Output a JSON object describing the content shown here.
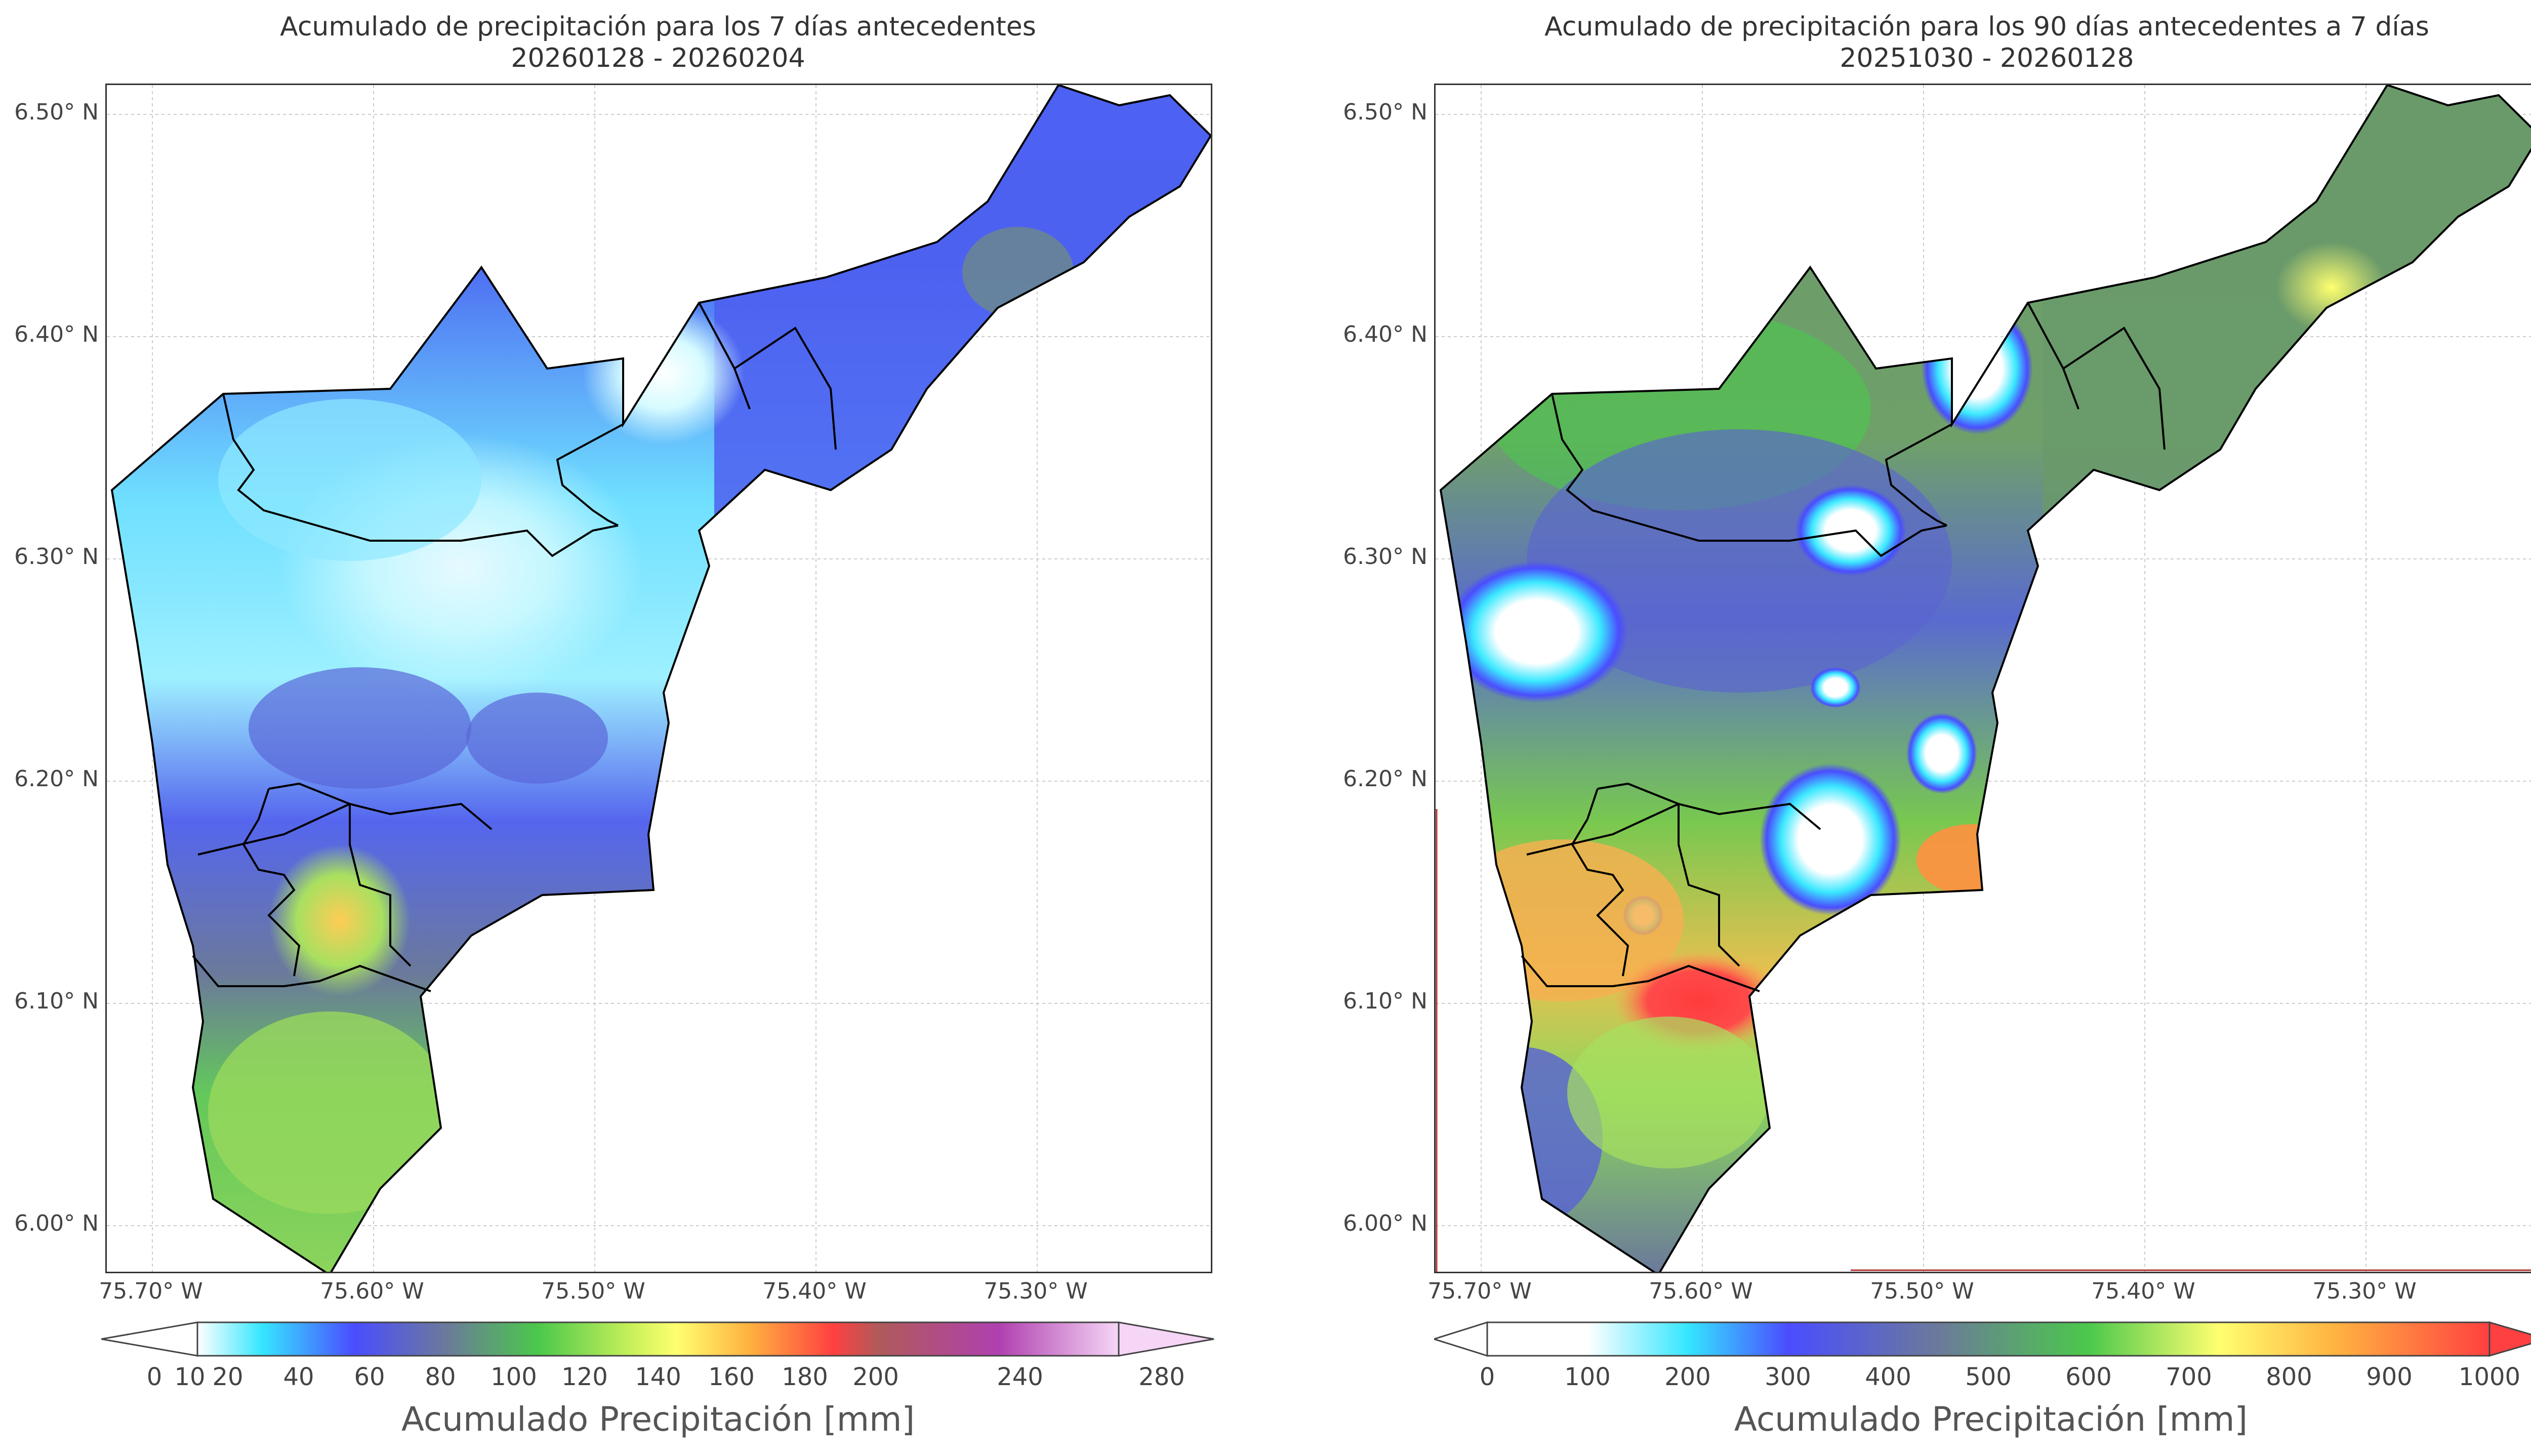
{
  "left_panel": {
    "title_line1": "Acumulado de precipitación para los 7 días antecedentes",
    "title_line2": "20260128 - 20260204",
    "lat_ticks": [
      "6.50° N",
      "6.40° N",
      "6.30° N",
      "6.20° N",
      "6.10° N",
      "6.00° N"
    ],
    "lon_ticks": [
      "75.70° W",
      "75.60° W",
      "75.50° W",
      "75.40° W",
      "75.30° W"
    ],
    "colorbar": {
      "label": "Acumulado Precipitación [mm]",
      "ticks": [
        "0",
        "10",
        "20",
        "40",
        "60",
        "80",
        "100",
        "120",
        "140",
        "160",
        "180",
        "200",
        "240",
        "280"
      ],
      "colors": [
        "#ffffff",
        "#35e6ff",
        "#4a4dff",
        "#6b7a9a",
        "#4bc84b",
        "#ffff70",
        "#ffb040",
        "#ff4040",
        "#b05a5a",
        "#b040b0",
        "#f6d6f6"
      ]
    }
  },
  "right_panel": {
    "title_line1": "Acumulado de precipitación para los 90 días antecedentes a 7 días",
    "title_line2": "20251030 - 20260128",
    "lat_ticks": [
      "6.50° N",
      "6.40° N",
      "6.30° N",
      "6.20° N",
      "6.10° N",
      "6.00° N"
    ],
    "lon_ticks": [
      "75.70° W",
      "75.60° W",
      "75.50° W",
      "75.40° W",
      "75.30° W"
    ],
    "colorbar": {
      "label": "Acumulado Precipitación [mm]",
      "ticks": [
        "0",
        "100",
        "200",
        "300",
        "400",
        "500",
        "600",
        "700",
        "800",
        "900",
        "1000"
      ],
      "colors": [
        "#ffffff",
        "#35e6ff",
        "#4a4dff",
        "#6b7a9a",
        "#4bc84b",
        "#ffff70",
        "#ffb040",
        "#ff4040"
      ]
    }
  }
}
